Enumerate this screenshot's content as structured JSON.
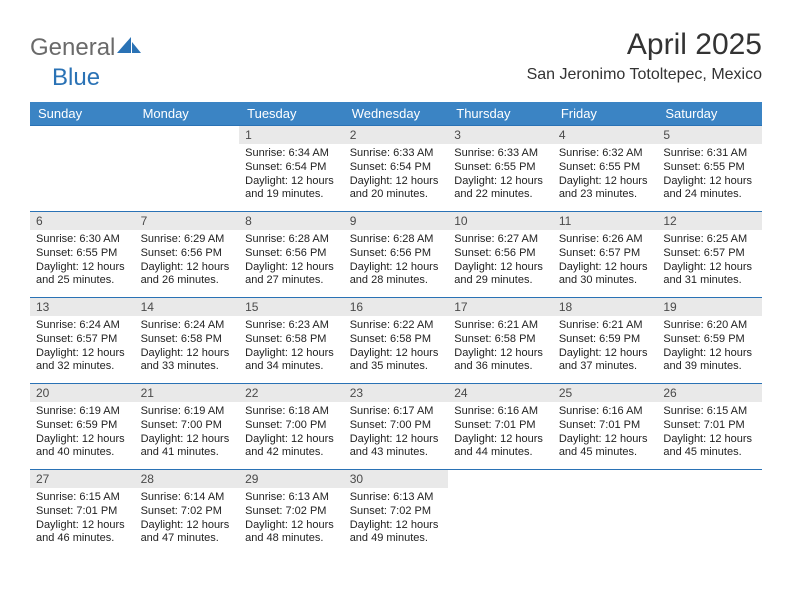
{
  "logo": {
    "general": "General",
    "blue": "Blue"
  },
  "title": "April 2025",
  "location": "San Jeronimo Totoltepec, Mexico",
  "colors": {
    "header_bg": "#3b84c4",
    "header_text": "#ffffff",
    "daynum_bg": "#e9e9e9",
    "rule": "#2a72b5",
    "logo_gray": "#6a6a6a",
    "logo_blue": "#2a72b5"
  },
  "weekdays": [
    "Sunday",
    "Monday",
    "Tuesday",
    "Wednesday",
    "Thursday",
    "Friday",
    "Saturday"
  ],
  "weeks": [
    [
      null,
      null,
      {
        "n": "1",
        "sr": "6:34 AM",
        "ss": "6:54 PM",
        "dl": "12 hours and 19 minutes."
      },
      {
        "n": "2",
        "sr": "6:33 AM",
        "ss": "6:54 PM",
        "dl": "12 hours and 20 minutes."
      },
      {
        "n": "3",
        "sr": "6:33 AM",
        "ss": "6:55 PM",
        "dl": "12 hours and 22 minutes."
      },
      {
        "n": "4",
        "sr": "6:32 AM",
        "ss": "6:55 PM",
        "dl": "12 hours and 23 minutes."
      },
      {
        "n": "5",
        "sr": "6:31 AM",
        "ss": "6:55 PM",
        "dl": "12 hours and 24 minutes."
      }
    ],
    [
      {
        "n": "6",
        "sr": "6:30 AM",
        "ss": "6:55 PM",
        "dl": "12 hours and 25 minutes."
      },
      {
        "n": "7",
        "sr": "6:29 AM",
        "ss": "6:56 PM",
        "dl": "12 hours and 26 minutes."
      },
      {
        "n": "8",
        "sr": "6:28 AM",
        "ss": "6:56 PM",
        "dl": "12 hours and 27 minutes."
      },
      {
        "n": "9",
        "sr": "6:28 AM",
        "ss": "6:56 PM",
        "dl": "12 hours and 28 minutes."
      },
      {
        "n": "10",
        "sr": "6:27 AM",
        "ss": "6:56 PM",
        "dl": "12 hours and 29 minutes."
      },
      {
        "n": "11",
        "sr": "6:26 AM",
        "ss": "6:57 PM",
        "dl": "12 hours and 30 minutes."
      },
      {
        "n": "12",
        "sr": "6:25 AM",
        "ss": "6:57 PM",
        "dl": "12 hours and 31 minutes."
      }
    ],
    [
      {
        "n": "13",
        "sr": "6:24 AM",
        "ss": "6:57 PM",
        "dl": "12 hours and 32 minutes."
      },
      {
        "n": "14",
        "sr": "6:24 AM",
        "ss": "6:58 PM",
        "dl": "12 hours and 33 minutes."
      },
      {
        "n": "15",
        "sr": "6:23 AM",
        "ss": "6:58 PM",
        "dl": "12 hours and 34 minutes."
      },
      {
        "n": "16",
        "sr": "6:22 AM",
        "ss": "6:58 PM",
        "dl": "12 hours and 35 minutes."
      },
      {
        "n": "17",
        "sr": "6:21 AM",
        "ss": "6:58 PM",
        "dl": "12 hours and 36 minutes."
      },
      {
        "n": "18",
        "sr": "6:21 AM",
        "ss": "6:59 PM",
        "dl": "12 hours and 37 minutes."
      },
      {
        "n": "19",
        "sr": "6:20 AM",
        "ss": "6:59 PM",
        "dl": "12 hours and 39 minutes."
      }
    ],
    [
      {
        "n": "20",
        "sr": "6:19 AM",
        "ss": "6:59 PM",
        "dl": "12 hours and 40 minutes."
      },
      {
        "n": "21",
        "sr": "6:19 AM",
        "ss": "7:00 PM",
        "dl": "12 hours and 41 minutes."
      },
      {
        "n": "22",
        "sr": "6:18 AM",
        "ss": "7:00 PM",
        "dl": "12 hours and 42 minutes."
      },
      {
        "n": "23",
        "sr": "6:17 AM",
        "ss": "7:00 PM",
        "dl": "12 hours and 43 minutes."
      },
      {
        "n": "24",
        "sr": "6:16 AM",
        "ss": "7:01 PM",
        "dl": "12 hours and 44 minutes."
      },
      {
        "n": "25",
        "sr": "6:16 AM",
        "ss": "7:01 PM",
        "dl": "12 hours and 45 minutes."
      },
      {
        "n": "26",
        "sr": "6:15 AM",
        "ss": "7:01 PM",
        "dl": "12 hours and 45 minutes."
      }
    ],
    [
      {
        "n": "27",
        "sr": "6:15 AM",
        "ss": "7:01 PM",
        "dl": "12 hours and 46 minutes."
      },
      {
        "n": "28",
        "sr": "6:14 AM",
        "ss": "7:02 PM",
        "dl": "12 hours and 47 minutes."
      },
      {
        "n": "29",
        "sr": "6:13 AM",
        "ss": "7:02 PM",
        "dl": "12 hours and 48 minutes."
      },
      {
        "n": "30",
        "sr": "6:13 AM",
        "ss": "7:02 PM",
        "dl": "12 hours and 49 minutes."
      },
      null,
      null,
      null
    ]
  ],
  "labels": {
    "sunrise": "Sunrise:",
    "sunset": "Sunset:",
    "daylight": "Daylight:"
  }
}
